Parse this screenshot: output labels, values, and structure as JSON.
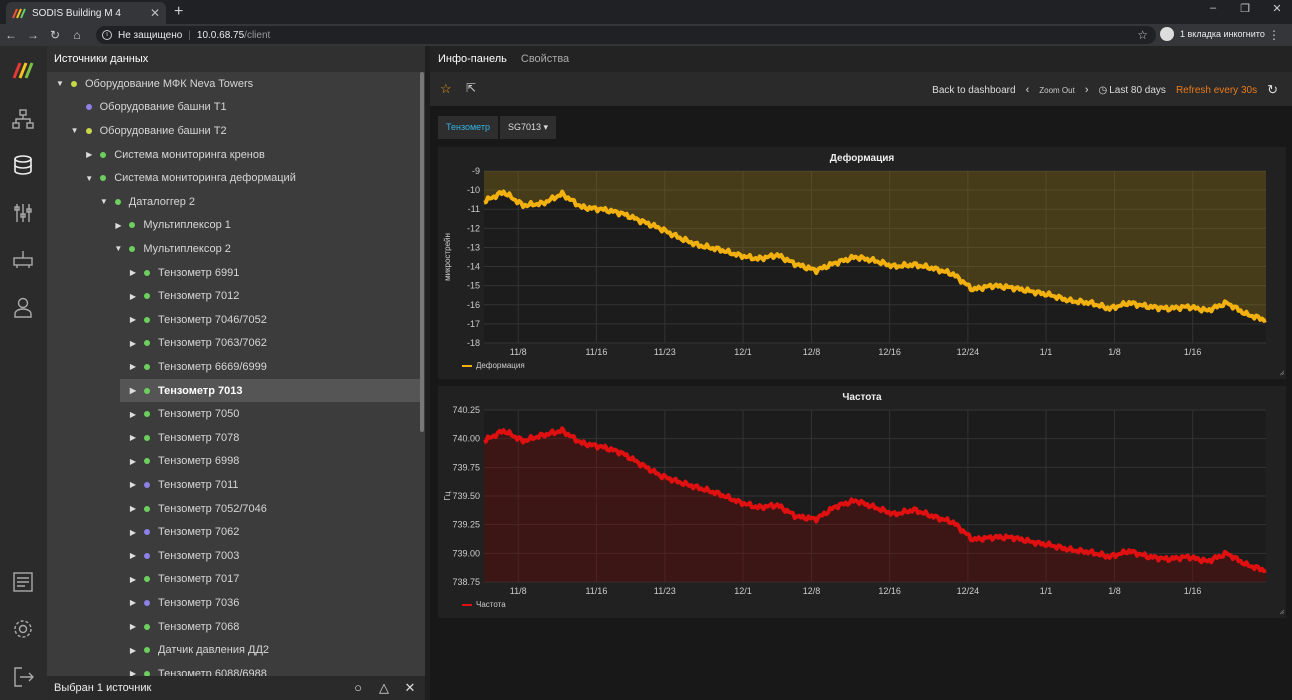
{
  "browser": {
    "tab_title": "SODIS Building M 4",
    "not_secure": "Не защищено",
    "host": "10.0.68.75",
    "path": "/client",
    "incognito": "1 вкладка инкогнито"
  },
  "tree": {
    "header": "Источники данных",
    "footer": "Выбран 1 источник",
    "items": [
      {
        "label": "Оборудование МФК Neva Towers",
        "level": 0,
        "arrow": "down",
        "color": "#c8d84a",
        "selected": false
      },
      {
        "label": "Оборудование башни Т1",
        "level": 1,
        "arrow": "",
        "color": "#8e80e6",
        "selected": false
      },
      {
        "label": "Оборудование башни Т2",
        "level": 1,
        "arrow": "down",
        "color": "#c8d84a",
        "selected": false
      },
      {
        "label": "Система мониторинга кренов",
        "level": 2,
        "arrow": "right",
        "color": "#6ccf5e",
        "selected": false
      },
      {
        "label": "Система мониторинга деформаций",
        "level": 2,
        "arrow": "down",
        "color": "#6ccf5e",
        "selected": false
      },
      {
        "label": "Даталоггер 2",
        "level": 3,
        "arrow": "down",
        "color": "#6ccf5e",
        "selected": false
      },
      {
        "label": "Мультиплексор 1",
        "level": 4,
        "arrow": "right",
        "color": "#6ccf5e",
        "selected": false
      },
      {
        "label": "Мультиплексор 2",
        "level": 4,
        "arrow": "down",
        "color": "#6ccf5e",
        "selected": false
      },
      {
        "label": "Тензометр 6991",
        "level": 5,
        "arrow": "right",
        "color": "#6ccf5e",
        "selected": false
      },
      {
        "label": "Тензометр 7012",
        "level": 5,
        "arrow": "right",
        "color": "#6ccf5e",
        "selected": false
      },
      {
        "label": "Тензометр 7046/7052",
        "level": 5,
        "arrow": "right",
        "color": "#6ccf5e",
        "selected": false
      },
      {
        "label": "Тензометр 7063/7062",
        "level": 5,
        "arrow": "right",
        "color": "#6ccf5e",
        "selected": false
      },
      {
        "label": "Тензометр 6669/6999",
        "level": 5,
        "arrow": "right",
        "color": "#6ccf5e",
        "selected": false
      },
      {
        "label": "Тензометр 7013",
        "level": 5,
        "arrow": "right",
        "color": "#6ccf5e",
        "selected": true
      },
      {
        "label": "Тензометр 7050",
        "level": 5,
        "arrow": "right",
        "color": "#6ccf5e",
        "selected": false
      },
      {
        "label": "Тензометр 7078",
        "level": 5,
        "arrow": "right",
        "color": "#6ccf5e",
        "selected": false
      },
      {
        "label": "Тензометр 6998",
        "level": 5,
        "arrow": "right",
        "color": "#6ccf5e",
        "selected": false
      },
      {
        "label": "Тензометр 7011",
        "level": 5,
        "arrow": "right",
        "color": "#8e80e6",
        "selected": false
      },
      {
        "label": "Тензометр 7052/7046",
        "level": 5,
        "arrow": "right",
        "color": "#6ccf5e",
        "selected": false
      },
      {
        "label": "Тензометр 7062",
        "level": 5,
        "arrow": "right",
        "color": "#8e80e6",
        "selected": false
      },
      {
        "label": "Тензометр 7003",
        "level": 5,
        "arrow": "right",
        "color": "#8e80e6",
        "selected": false
      },
      {
        "label": "Тензометр 7017",
        "level": 5,
        "arrow": "right",
        "color": "#6ccf5e",
        "selected": false
      },
      {
        "label": "Тензометр 7036",
        "level": 5,
        "arrow": "right",
        "color": "#8e80e6",
        "selected": false
      },
      {
        "label": "Тензометр 7068",
        "level": 5,
        "arrow": "right",
        "color": "#6ccf5e",
        "selected": false
      },
      {
        "label": "Датчик давления ДД2",
        "level": 5,
        "arrow": "right",
        "color": "#6ccf5e",
        "selected": false
      },
      {
        "label": "Тензометр 6088/6988",
        "level": 5,
        "arrow": "right",
        "color": "#6ccf5e",
        "selected": false
      }
    ]
  },
  "main": {
    "tabs": [
      "Инфо-панель",
      "Свойства"
    ],
    "back": "Back to dashboard",
    "zoom_out": "Zoom Out",
    "range": "Last 80 days",
    "refresh": "Refresh every 30s",
    "var_label": "Тензометр",
    "var_value": "SG7013 ▾"
  },
  "chart_data": [
    {
      "type": "line",
      "title": "Деформация",
      "ylabel": "микрострейн",
      "legend": "Деформация",
      "color": "#f2b10e",
      "yticks": [
        "-9",
        "-10",
        "-11",
        "-12",
        "-13",
        "-14",
        "-15",
        "-16",
        "-17",
        "-18"
      ],
      "ylim": [
        -18,
        -9
      ],
      "xticks": [
        "11/8",
        "11/16",
        "11/23",
        "12/1",
        "12/8",
        "12/16",
        "12/24",
        "1/1",
        "1/8",
        "1/16"
      ],
      "x": [
        0,
        2,
        4,
        6,
        8,
        10,
        12,
        14,
        16,
        18,
        20,
        22,
        24,
        26,
        28,
        30,
        32,
        34,
        36,
        38,
        40,
        42,
        44,
        46,
        48,
        50,
        52,
        54,
        56,
        58,
        60,
        62,
        64,
        66,
        68,
        70,
        72,
        74,
        76,
        78,
        80
      ],
      "values": [
        -10.6,
        -10.1,
        -10.8,
        -10.7,
        -10.2,
        -10.9,
        -11.0,
        -11.2,
        -11.6,
        -12.0,
        -12.5,
        -12.9,
        -13.1,
        -13.4,
        -13.6,
        -13.4,
        -13.9,
        -14.2,
        -13.8,
        -13.5,
        -13.7,
        -14.0,
        -13.9,
        -14.1,
        -14.4,
        -15.2,
        -15.0,
        -15.1,
        -15.3,
        -15.5,
        -15.8,
        -15.9,
        -16.2,
        -15.9,
        -16.1,
        -16.2,
        -16.1,
        -16.3,
        -15.9,
        -16.5,
        -16.8
      ]
    },
    {
      "type": "line",
      "title": "Частота",
      "ylabel": "Гц",
      "legend": "Частота",
      "color": "#e01010",
      "yticks": [
        "740.25",
        "740.00",
        "739.75",
        "739.50",
        "739.25",
        "739.00",
        "738.75"
      ],
      "ylim": [
        738.75,
        740.25
      ],
      "xticks": [
        "11/8",
        "11/16",
        "11/23",
        "12/1",
        "12/8",
        "12/16",
        "12/24",
        "1/1",
        "1/8",
        "1/16"
      ],
      "x": [
        0,
        2,
        4,
        6,
        8,
        10,
        12,
        14,
        16,
        18,
        20,
        22,
        24,
        26,
        28,
        30,
        32,
        34,
        36,
        38,
        40,
        42,
        44,
        46,
        48,
        50,
        52,
        54,
        56,
        58,
        60,
        62,
        64,
        66,
        68,
        70,
        72,
        74,
        76,
        78,
        80
      ],
      "values": [
        739.98,
        740.07,
        739.98,
        740.03,
        740.07,
        739.96,
        739.93,
        739.88,
        739.78,
        739.68,
        739.62,
        739.57,
        739.52,
        739.45,
        739.4,
        739.42,
        739.32,
        739.3,
        739.41,
        739.46,
        739.4,
        739.34,
        739.38,
        739.32,
        739.27,
        739.12,
        739.14,
        739.14,
        739.1,
        739.07,
        739.03,
        739.01,
        738.97,
        739.02,
        738.97,
        738.95,
        738.97,
        738.93,
        739.0,
        738.9,
        738.85
      ]
    }
  ]
}
